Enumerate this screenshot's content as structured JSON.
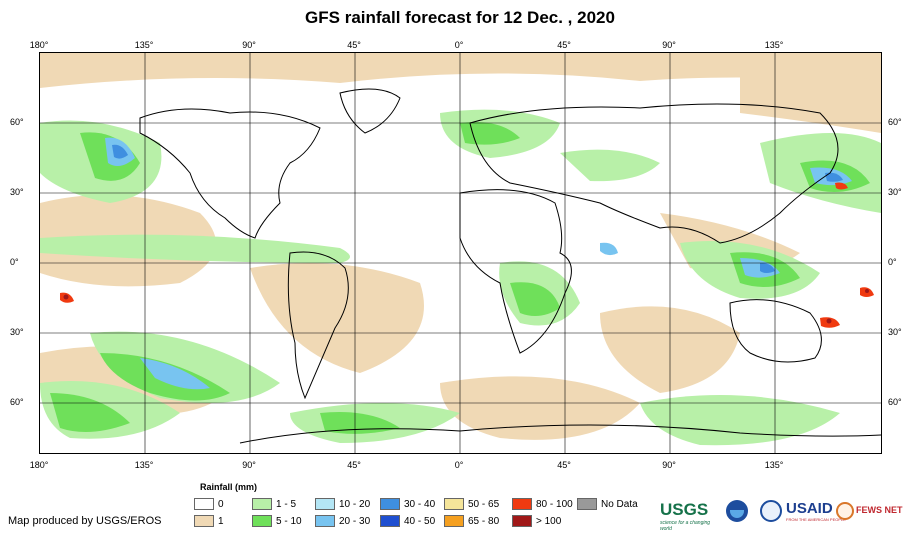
{
  "title": "GFS rainfall forecast for 12 Dec. , 2020",
  "lon_ticks": [
    "180°",
    "135°",
    "90°",
    "45°",
    "0°",
    "45°",
    "90°",
    "135°"
  ],
  "lat_ticks": [
    "60°",
    "30°",
    "0°",
    "30°",
    "60°"
  ],
  "legend": {
    "title": "Rainfall (mm)",
    "items": [
      {
        "label": "0",
        "color": "#ffffff"
      },
      {
        "label": "1",
        "color": "#f0d9b5"
      },
      {
        "label": "1 - 5",
        "color": "#b8f0a8"
      },
      {
        "label": "5 - 10",
        "color": "#6fe05a"
      },
      {
        "label": "10 - 20",
        "color": "#b4e6f5"
      },
      {
        "label": "20 - 30",
        "color": "#78c4f0"
      },
      {
        "label": "30 - 40",
        "color": "#3f8fe0"
      },
      {
        "label": "40 - 50",
        "color": "#1f4fd0"
      },
      {
        "label": "50 - 65",
        "color": "#f5e59a"
      },
      {
        "label": "65 - 80",
        "color": "#f5a020"
      },
      {
        "label": "80 - 100",
        "color": "#f03a10"
      },
      {
        "label": "> 100",
        "color": "#a01818"
      },
      {
        "label": "No Data",
        "color": "#999999"
      }
    ]
  },
  "credit": "Map produced by USGS/EROS",
  "logos": {
    "usgs": "USGS",
    "usgs_tagline": "science for a changing world",
    "usaid": "USAID",
    "usaid_tagline": "FROM THE AMERICAN PEOPLE",
    "fews": "FEWS NET"
  }
}
